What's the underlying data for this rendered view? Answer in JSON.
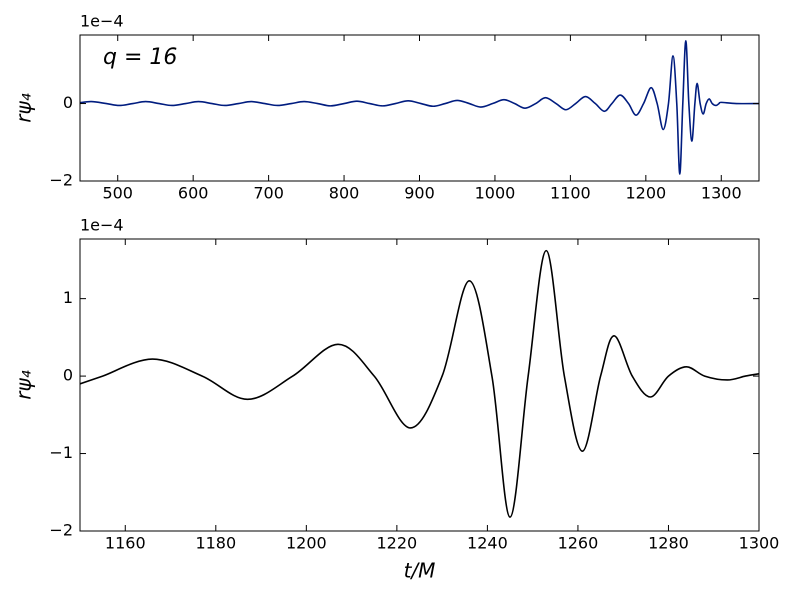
{
  "chart_data": [
    {
      "type": "line",
      "annotation": "q = 16",
      "ylabel": "rψ₄",
      "offset_text": "1e−4",
      "x": [
        450,
        465,
        485,
        502,
        520,
        537,
        555,
        572,
        590,
        607,
        625,
        642,
        660,
        677,
        695,
        712,
        730,
        747,
        765,
        782,
        800,
        817,
        834,
        851,
        868,
        885,
        902,
        918,
        934,
        950,
        966,
        981,
        997,
        1012,
        1026,
        1040,
        1054,
        1067,
        1081,
        1094,
        1107,
        1120,
        1133,
        1145,
        1155,
        1166,
        1177,
        1187,
        1197,
        1207,
        1215,
        1223,
        1230,
        1236,
        1241,
        1245,
        1249,
        1253,
        1257,
        1261,
        1265,
        1268,
        1272,
        1276,
        1280,
        1284,
        1288,
        1293,
        1297,
        1300,
        1320,
        1350
      ],
      "series": [
        {
          "color": "#001c7f",
          "values": [
            0.02,
            0.05,
            0,
            -0.05,
            0,
            0.05,
            0,
            -0.05,
            0,
            0.05,
            0,
            -0.05,
            0,
            0.05,
            0,
            -0.05,
            0,
            0.05,
            0,
            -0.06,
            0,
            0.06,
            0,
            -0.06,
            0,
            0.07,
            0,
            -0.07,
            0,
            0.08,
            0,
            -0.09,
            0,
            0.1,
            0,
            -0.12,
            0,
            0.15,
            0,
            -0.16,
            0,
            0.18,
            0,
            -0.2,
            0,
            0.22,
            0,
            -0.3,
            0,
            0.41,
            0,
            -0.67,
            0,
            1.23,
            0,
            -1.82,
            0,
            1.62,
            0,
            -0.97,
            0,
            0.52,
            0,
            -0.27,
            0,
            0.12,
            0,
            -0.05,
            0,
            0.03,
            0,
            0
          ]
        }
      ],
      "xlim": [
        450,
        1350
      ],
      "ylim": [
        -2,
        1.77
      ],
      "xticks": [
        500,
        600,
        700,
        800,
        900,
        1000,
        1100,
        1200,
        1300
      ],
      "yticks": [
        {
          "value": -2,
          "label": "−2"
        },
        0
      ]
    },
    {
      "type": "line",
      "ylabel": "rψ₄",
      "xlabel": "t/M",
      "offset_text": "1e−4",
      "x": [
        1150,
        1155,
        1166,
        1177,
        1187,
        1197,
        1207,
        1215,
        1223,
        1230,
        1236,
        1241,
        1245,
        1249,
        1253,
        1257,
        1261,
        1265,
        1268,
        1272,
        1276,
        1280,
        1284,
        1288,
        1293,
        1297,
        1300
      ],
      "series": [
        {
          "color": "#000000",
          "values": [
            -0.1,
            0,
            0.22,
            0,
            -0.3,
            0,
            0.41,
            0,
            -0.67,
            0,
            1.23,
            0,
            -1.82,
            0,
            1.62,
            0,
            -0.97,
            0,
            0.52,
            0,
            -0.27,
            0,
            0.12,
            0,
            -0.05,
            0,
            0.03
          ]
        }
      ],
      "xlim": [
        1150,
        1300
      ],
      "ylim": [
        -2,
        1.77
      ],
      "xticks": [
        1160,
        1180,
        1200,
        1220,
        1240,
        1260,
        1280,
        1300
      ],
      "yticks": [
        {
          "value": -2,
          "label": "−2"
        },
        {
          "value": -1,
          "label": "−1"
        },
        0,
        1
      ]
    }
  ]
}
